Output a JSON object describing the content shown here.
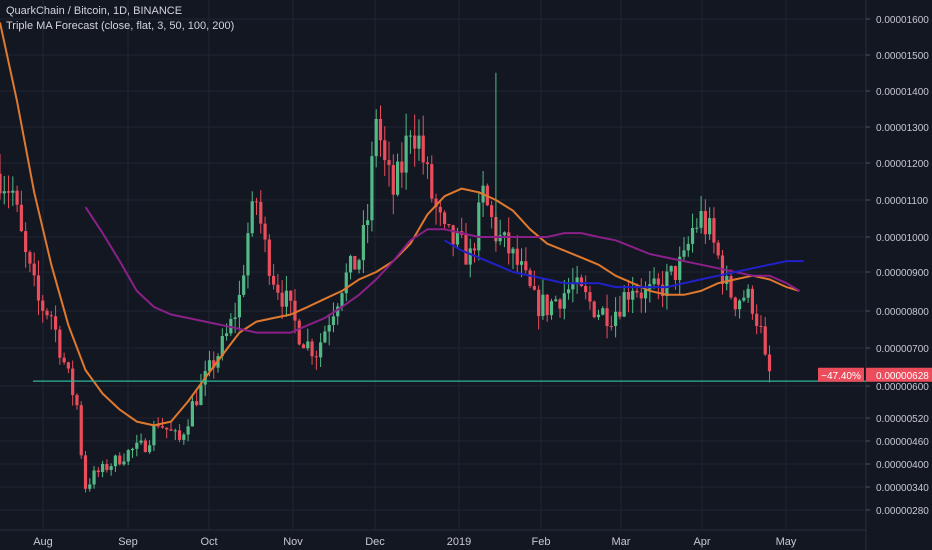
{
  "header": {
    "symbol_title": "QuarkChain / Bitcoin, 1D, BINANCE",
    "indicator_title": "Triple MA Forecast (close, flat, 3, 50, 100, 200)"
  },
  "colors": {
    "background": "#131722",
    "grid": "#1f2431",
    "text": "#c6c9d2",
    "up": "#53b987",
    "down": "#eb4d5c",
    "ma_fast": "#e0792e",
    "ma_mid": "#8b2088",
    "ma_slow": "#2121c9",
    "support_line": "#2db59a",
    "price_badge": "#eb4d5c"
  },
  "chart_data": {
    "type": "candlestick",
    "symbol": "QuarkChain / Bitcoin",
    "interval": "1D",
    "exchange": "BINANCE",
    "x_ticks": [
      "Aug",
      "Sep",
      "Oct",
      "Nov",
      "Dec",
      "2019",
      "Feb",
      "Mar",
      "Apr",
      "May"
    ],
    "y_ticks": [
      "0.00001600",
      "0.00001500",
      "0.00001400",
      "0.00001300",
      "0.00001200",
      "0.00001100",
      "0.00001000",
      "0.00000900",
      "0.00000800",
      "0.00000700",
      "0.00000600",
      "0.00000520",
      "0.00000460",
      "0.00000400",
      "0.00000340",
      "0.00000280"
    ],
    "y_scale": "log",
    "last_price_label": "0.00000628",
    "change_label": "−47.40%",
    "support_level": 6.12e-06,
    "ma_fast_points": [
      [
        0,
        1.59e-05
      ],
      [
        4,
        1.37e-05
      ],
      [
        8,
        1.12e-05
      ],
      [
        12,
        9.2e-06
      ],
      [
        16,
        7.6e-06
      ],
      [
        20,
        6.4e-06
      ],
      [
        24,
        5.8e-06
      ],
      [
        28,
        5.4e-06
      ],
      [
        32,
        5.1e-06
      ],
      [
        36,
        5e-06
      ],
      [
        40,
        5.1e-06
      ],
      [
        44,
        5.6e-06
      ],
      [
        48,
        6.2e-06
      ],
      [
        52,
        6.8e-06
      ],
      [
        56,
        7.4e-06
      ],
      [
        60,
        7.7e-06
      ],
      [
        64,
        7.8e-06
      ],
      [
        68,
        7.9e-06
      ],
      [
        72,
        8.1e-06
      ],
      [
        76,
        8.3e-06
      ],
      [
        80,
        8.5e-06
      ],
      [
        84,
        8.8e-06
      ],
      [
        88,
        9e-06
      ],
      [
        92,
        9.3e-06
      ],
      [
        96,
        9.8e-06
      ],
      [
        100,
        1.06e-05
      ],
      [
        104,
        1.11e-05
      ],
      [
        108,
        1.13e-05
      ],
      [
        112,
        1.12e-05
      ],
      [
        116,
        1.1e-05
      ],
      [
        120,
        1.07e-05
      ],
      [
        124,
        1.02e-05
      ],
      [
        128,
        9.8e-06
      ],
      [
        132,
        9.6e-06
      ],
      [
        136,
        9.4e-06
      ],
      [
        140,
        9.2e-06
      ],
      [
        144,
        8.9e-06
      ],
      [
        148,
        8.7e-06
      ],
      [
        152,
        8.5e-06
      ],
      [
        156,
        8.4e-06
      ],
      [
        160,
        8.4e-06
      ],
      [
        164,
        8.5e-06
      ],
      [
        168,
        8.7e-06
      ],
      [
        172,
        8.8e-06
      ],
      [
        176,
        8.9e-06
      ],
      [
        180,
        8.8e-06
      ],
      [
        184,
        8.6e-06
      ],
      [
        187,
        8.5e-06
      ]
    ],
    "ma_mid_points": [
      [
        20,
        1.08e-05
      ],
      [
        24,
        1.01e-05
      ],
      [
        28,
        9.3e-06
      ],
      [
        32,
        8.5e-06
      ],
      [
        36,
        8.1e-06
      ],
      [
        40,
        7.9e-06
      ],
      [
        44,
        7.8e-06
      ],
      [
        48,
        7.7e-06
      ],
      [
        52,
        7.6e-06
      ],
      [
        56,
        7.5e-06
      ],
      [
        60,
        7.4e-06
      ],
      [
        64,
        7.4e-06
      ],
      [
        68,
        7.4e-06
      ],
      [
        72,
        7.6e-06
      ],
      [
        76,
        7.8e-06
      ],
      [
        80,
        8.1e-06
      ],
      [
        84,
        8.4e-06
      ],
      [
        88,
        8.8e-06
      ],
      [
        92,
        9.3e-06
      ],
      [
        96,
        9.9e-06
      ],
      [
        100,
        1.02e-05
      ],
      [
        104,
        1.02e-05
      ],
      [
        108,
        1.01e-05
      ],
      [
        112,
        1e-05
      ],
      [
        116,
        1e-05
      ],
      [
        120,
        1e-05
      ],
      [
        124,
        1e-05
      ],
      [
        128,
        1e-05
      ],
      [
        132,
        1.01e-05
      ],
      [
        136,
        1.01e-05
      ],
      [
        140,
        1e-05
      ],
      [
        144,
        9.9e-06
      ],
      [
        148,
        9.7e-06
      ],
      [
        152,
        9.5e-06
      ],
      [
        156,
        9.4e-06
      ],
      [
        160,
        9.3e-06
      ],
      [
        164,
        9.2e-06
      ],
      [
        168,
        9.1e-06
      ],
      [
        172,
        9e-06
      ],
      [
        176,
        8.9e-06
      ],
      [
        180,
        8.9e-06
      ],
      [
        184,
        8.7e-06
      ],
      [
        187,
        8.5e-06
      ]
    ],
    "ma_slow_points": [
      [
        104,
        9.9e-06
      ],
      [
        108,
        9.6e-06
      ],
      [
        112,
        9.4e-06
      ],
      [
        116,
        9.2e-06
      ],
      [
        120,
        9e-06
      ],
      [
        124,
        8.9e-06
      ],
      [
        128,
        8.8e-06
      ],
      [
        132,
        8.7e-06
      ],
      [
        136,
        8.7e-06
      ],
      [
        140,
        8.7e-06
      ],
      [
        144,
        8.6e-06
      ],
      [
        148,
        8.6e-06
      ],
      [
        152,
        8.6e-06
      ],
      [
        156,
        8.6e-06
      ],
      [
        160,
        8.7e-06
      ],
      [
        164,
        8.8e-06
      ],
      [
        168,
        8.9e-06
      ],
      [
        172,
        9e-06
      ],
      [
        176,
        9.1e-06
      ],
      [
        180,
        9.2e-06
      ],
      [
        184,
        9.3e-06
      ],
      [
        188,
        9.3e-06
      ]
    ],
    "candle_anchors": [
      [
        0,
        1.17e-05
      ],
      [
        3,
        1.12e-05
      ],
      [
        6,
        9.4e-06
      ],
      [
        9,
        8.2e-06
      ],
      [
        12,
        7.9e-06
      ],
      [
        15,
        6.6e-06
      ],
      [
        18,
        5.5e-06
      ],
      [
        19,
        4.3e-06
      ],
      [
        20,
        3.4e-06
      ],
      [
        22,
        3.7e-06
      ],
      [
        26,
        4e-06
      ],
      [
        30,
        4.3e-06
      ],
      [
        34,
        4.5e-06
      ],
      [
        37,
        5.1e-06
      ],
      [
        40,
        4.8e-06
      ],
      [
        42,
        4.6e-06
      ],
      [
        45,
        5.5e-06
      ],
      [
        49,
        6.4e-06
      ],
      [
        53,
        7.3e-06
      ],
      [
        56,
        8.3e-06
      ],
      [
        58,
        1.01e-05
      ],
      [
        60,
        1.1e-05
      ],
      [
        62,
        9.7e-06
      ],
      [
        64,
        8.9e-06
      ],
      [
        67,
        8.2e-06
      ],
      [
        70,
        7.4e-06
      ],
      [
        72,
        7.1e-06
      ],
      [
        74,
        6.9e-06
      ],
      [
        76,
        7.5e-06
      ],
      [
        78,
        8.1e-06
      ],
      [
        80,
        8.7e-06
      ],
      [
        84,
        9.4e-06
      ],
      [
        86,
        1.05e-05
      ],
      [
        88,
        1.34e-05
      ],
      [
        90,
        1.19e-05
      ],
      [
        92,
        1.12e-05
      ],
      [
        94,
        1.19e-05
      ],
      [
        96,
        1.31e-05
      ],
      [
        98,
        1.26e-05
      ],
      [
        101,
        1.11e-05
      ],
      [
        104,
        1e-05
      ],
      [
        107,
        9.8e-06
      ],
      [
        110,
        9.4e-06
      ],
      [
        113,
        1.11e-05
      ],
      [
        116,
        1.01e-05
      ],
      [
        119,
        9.6e-06
      ],
      [
        122,
        9e-06
      ],
      [
        125,
        8.2e-06
      ],
      [
        128,
        8.1e-06
      ],
      [
        131,
        8.4e-06
      ],
      [
        134,
        8.6e-06
      ],
      [
        137,
        8.3e-06
      ],
      [
        140,
        8e-06
      ],
      [
        143,
        7.9e-06
      ],
      [
        145,
        8.2e-06
      ],
      [
        148,
        8.7e-06
      ],
      [
        151,
        8.4e-06
      ],
      [
        154,
        8.5e-06
      ],
      [
        157,
        8.9e-06
      ],
      [
        160,
        9.3e-06
      ],
      [
        162,
        1.02e-05
      ],
      [
        164,
        1.05e-05
      ],
      [
        166,
        1.01e-05
      ],
      [
        168,
        9.4e-06
      ],
      [
        170,
        8.6e-06
      ],
      [
        172,
        8.3e-06
      ],
      [
        174,
        8.4e-06
      ],
      [
        176,
        8.2e-06
      ],
      [
        178,
        7.4e-06
      ],
      [
        179,
        6.6e-06
      ],
      [
        180,
        6.3e-06
      ]
    ]
  }
}
